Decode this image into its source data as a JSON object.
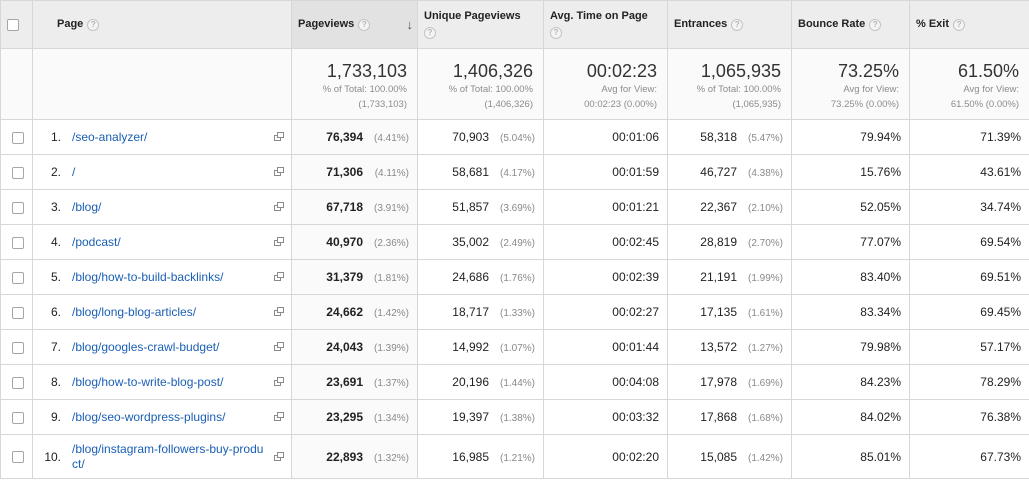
{
  "columns": {
    "page": "Page",
    "pageviews": "Pageviews",
    "unique": "Unique Pageviews",
    "avg_time": "Avg. Time on Page",
    "entrances": "Entrances",
    "bounce": "Bounce Rate",
    "exit": "% Exit"
  },
  "help_glyph": "?",
  "sort_glyph": "↓",
  "totals": {
    "pageviews": {
      "value": "1,733,103",
      "sub1": "% of Total: 100.00%",
      "sub2": "(1,733,103)"
    },
    "unique": {
      "value": "1,406,326",
      "sub1": "% of Total: 100.00%",
      "sub2": "(1,406,326)"
    },
    "avg_time": {
      "value": "00:02:23",
      "sub1": "Avg for View:",
      "sub2": "00:02:23 (0.00%)"
    },
    "entrances": {
      "value": "1,065,935",
      "sub1": "% of Total: 100.00%",
      "sub2": "(1,065,935)"
    },
    "bounce": {
      "value": "73.25%",
      "sub1": "Avg for View:",
      "sub2": "73.25% (0.00%)"
    },
    "exit": {
      "value": "61.50%",
      "sub1": "Avg for View:",
      "sub2": "61.50% (0.00%)"
    }
  },
  "rows": [
    {
      "idx": "1.",
      "page": "/seo-analyzer/",
      "pv": "76,394",
      "pv_pct": "(4.41%)",
      "upv": "70,903",
      "upv_pct": "(5.04%)",
      "time": "00:01:06",
      "ent": "58,318",
      "ent_pct": "(5.47%)",
      "bounce": "79.94%",
      "exit": "71.39%"
    },
    {
      "idx": "2.",
      "page": "/",
      "pv": "71,306",
      "pv_pct": "(4.11%)",
      "upv": "58,681",
      "upv_pct": "(4.17%)",
      "time": "00:01:59",
      "ent": "46,727",
      "ent_pct": "(4.38%)",
      "bounce": "15.76%",
      "exit": "43.61%"
    },
    {
      "idx": "3.",
      "page": "/blog/",
      "pv": "67,718",
      "pv_pct": "(3.91%)",
      "upv": "51,857",
      "upv_pct": "(3.69%)",
      "time": "00:01:21",
      "ent": "22,367",
      "ent_pct": "(2.10%)",
      "bounce": "52.05%",
      "exit": "34.74%"
    },
    {
      "idx": "4.",
      "page": "/podcast/",
      "pv": "40,970",
      "pv_pct": "(2.36%)",
      "upv": "35,002",
      "upv_pct": "(2.49%)",
      "time": "00:02:45",
      "ent": "28,819",
      "ent_pct": "(2.70%)",
      "bounce": "77.07%",
      "exit": "69.54%"
    },
    {
      "idx": "5.",
      "page": "/blog/how-to-build-backlinks/",
      "pv": "31,379",
      "pv_pct": "(1.81%)",
      "upv": "24,686",
      "upv_pct": "(1.76%)",
      "time": "00:02:39",
      "ent": "21,191",
      "ent_pct": "(1.99%)",
      "bounce": "83.40%",
      "exit": "69.51%"
    },
    {
      "idx": "6.",
      "page": "/blog/long-blog-articles/",
      "pv": "24,662",
      "pv_pct": "(1.42%)",
      "upv": "18,717",
      "upv_pct": "(1.33%)",
      "time": "00:02:27",
      "ent": "17,135",
      "ent_pct": "(1.61%)",
      "bounce": "83.34%",
      "exit": "69.45%"
    },
    {
      "idx": "7.",
      "page": "/blog/googles-crawl-budget/",
      "pv": "24,043",
      "pv_pct": "(1.39%)",
      "upv": "14,992",
      "upv_pct": "(1.07%)",
      "time": "00:01:44",
      "ent": "13,572",
      "ent_pct": "(1.27%)",
      "bounce": "79.98%",
      "exit": "57.17%"
    },
    {
      "idx": "8.",
      "page": "/blog/how-to-write-blog-post/",
      "pv": "23,691",
      "pv_pct": "(1.37%)",
      "upv": "20,196",
      "upv_pct": "(1.44%)",
      "time": "00:04:08",
      "ent": "17,978",
      "ent_pct": "(1.69%)",
      "bounce": "84.23%",
      "exit": "78.29%"
    },
    {
      "idx": "9.",
      "page": "/blog/seo-wordpress-plugins/",
      "pv": "23,295",
      "pv_pct": "(1.34%)",
      "upv": "19,397",
      "upv_pct": "(1.38%)",
      "time": "00:03:32",
      "ent": "17,868",
      "ent_pct": "(1.68%)",
      "bounce": "84.02%",
      "exit": "76.38%"
    },
    {
      "idx": "10.",
      "page": "/blog/instagram-followers-buy-product/",
      "pv": "22,893",
      "pv_pct": "(1.32%)",
      "upv": "16,985",
      "upv_pct": "(1.21%)",
      "time": "00:02:20",
      "ent": "15,085",
      "ent_pct": "(1.42%)",
      "bounce": "85.01%",
      "exit": "67.73%"
    }
  ]
}
